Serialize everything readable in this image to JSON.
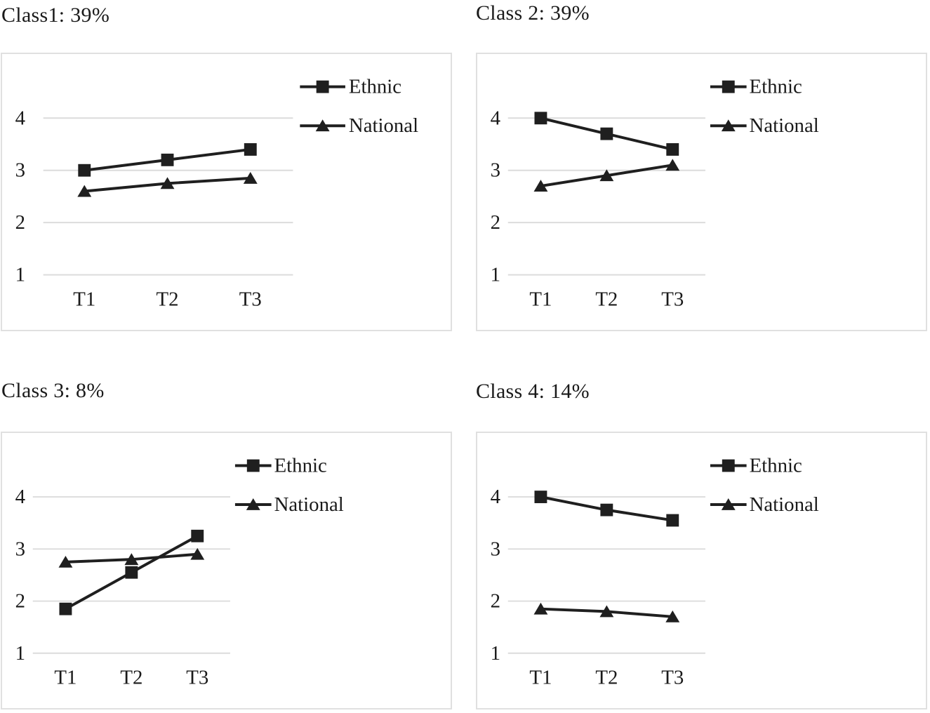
{
  "style": {
    "ink": "#1f1f1f",
    "grid_color": "#dcdcdc",
    "panel_border_color": "#e0e0e0",
    "text_color": "#1a1a1a"
  },
  "chart_data": [
    {
      "type": "line",
      "title": "Class1: 39%",
      "class_share": "39%",
      "categories": [
        "T1",
        "T2",
        "T3"
      ],
      "y_ticks": [
        4,
        3,
        2,
        1
      ],
      "ylim": [
        1,
        4
      ],
      "grid": "horizontal",
      "legend_position": "top-right",
      "series": [
        {
          "name": "Ethnic",
          "marker": "square",
          "values": [
            3.0,
            3.2,
            3.4
          ]
        },
        {
          "name": "National",
          "marker": "triangle",
          "values": [
            2.6,
            2.75,
            2.85
          ]
        }
      ]
    },
    {
      "type": "line",
      "title": "Class 2: 39%",
      "class_share": "39%",
      "categories": [
        "T1",
        "T2",
        "T3"
      ],
      "y_ticks": [
        4,
        3,
        2,
        1
      ],
      "ylim": [
        1,
        4
      ],
      "grid": "horizontal",
      "legend_position": "top-right",
      "series": [
        {
          "name": "Ethnic",
          "marker": "square",
          "values": [
            4.0,
            3.7,
            3.4
          ]
        },
        {
          "name": "National",
          "marker": "triangle",
          "values": [
            2.7,
            2.9,
            3.1
          ]
        }
      ]
    },
    {
      "type": "line",
      "title": "Class 3: 8%",
      "class_share": "8%",
      "categories": [
        "T1",
        "T2",
        "T3"
      ],
      "y_ticks": [
        4,
        3,
        2,
        1
      ],
      "ylim": [
        1,
        4
      ],
      "grid": "horizontal",
      "legend_position": "top-right",
      "series": [
        {
          "name": "Ethnic",
          "marker": "square",
          "values": [
            1.85,
            2.55,
            3.25
          ]
        },
        {
          "name": "National",
          "marker": "triangle",
          "values": [
            2.75,
            2.8,
            2.9
          ]
        }
      ]
    },
    {
      "type": "line",
      "title": "Class 4: 14%",
      "class_share": "14%",
      "categories": [
        "T1",
        "T2",
        "T3"
      ],
      "y_ticks": [
        4,
        3,
        2,
        1
      ],
      "ylim": [
        1,
        4
      ],
      "grid": "horizontal",
      "legend_position": "top-right",
      "series": [
        {
          "name": "Ethnic",
          "marker": "square",
          "values": [
            4.0,
            3.75,
            3.55
          ]
        },
        {
          "name": "National",
          "marker": "triangle",
          "values": [
            1.85,
            1.8,
            1.7
          ]
        }
      ]
    }
  ]
}
